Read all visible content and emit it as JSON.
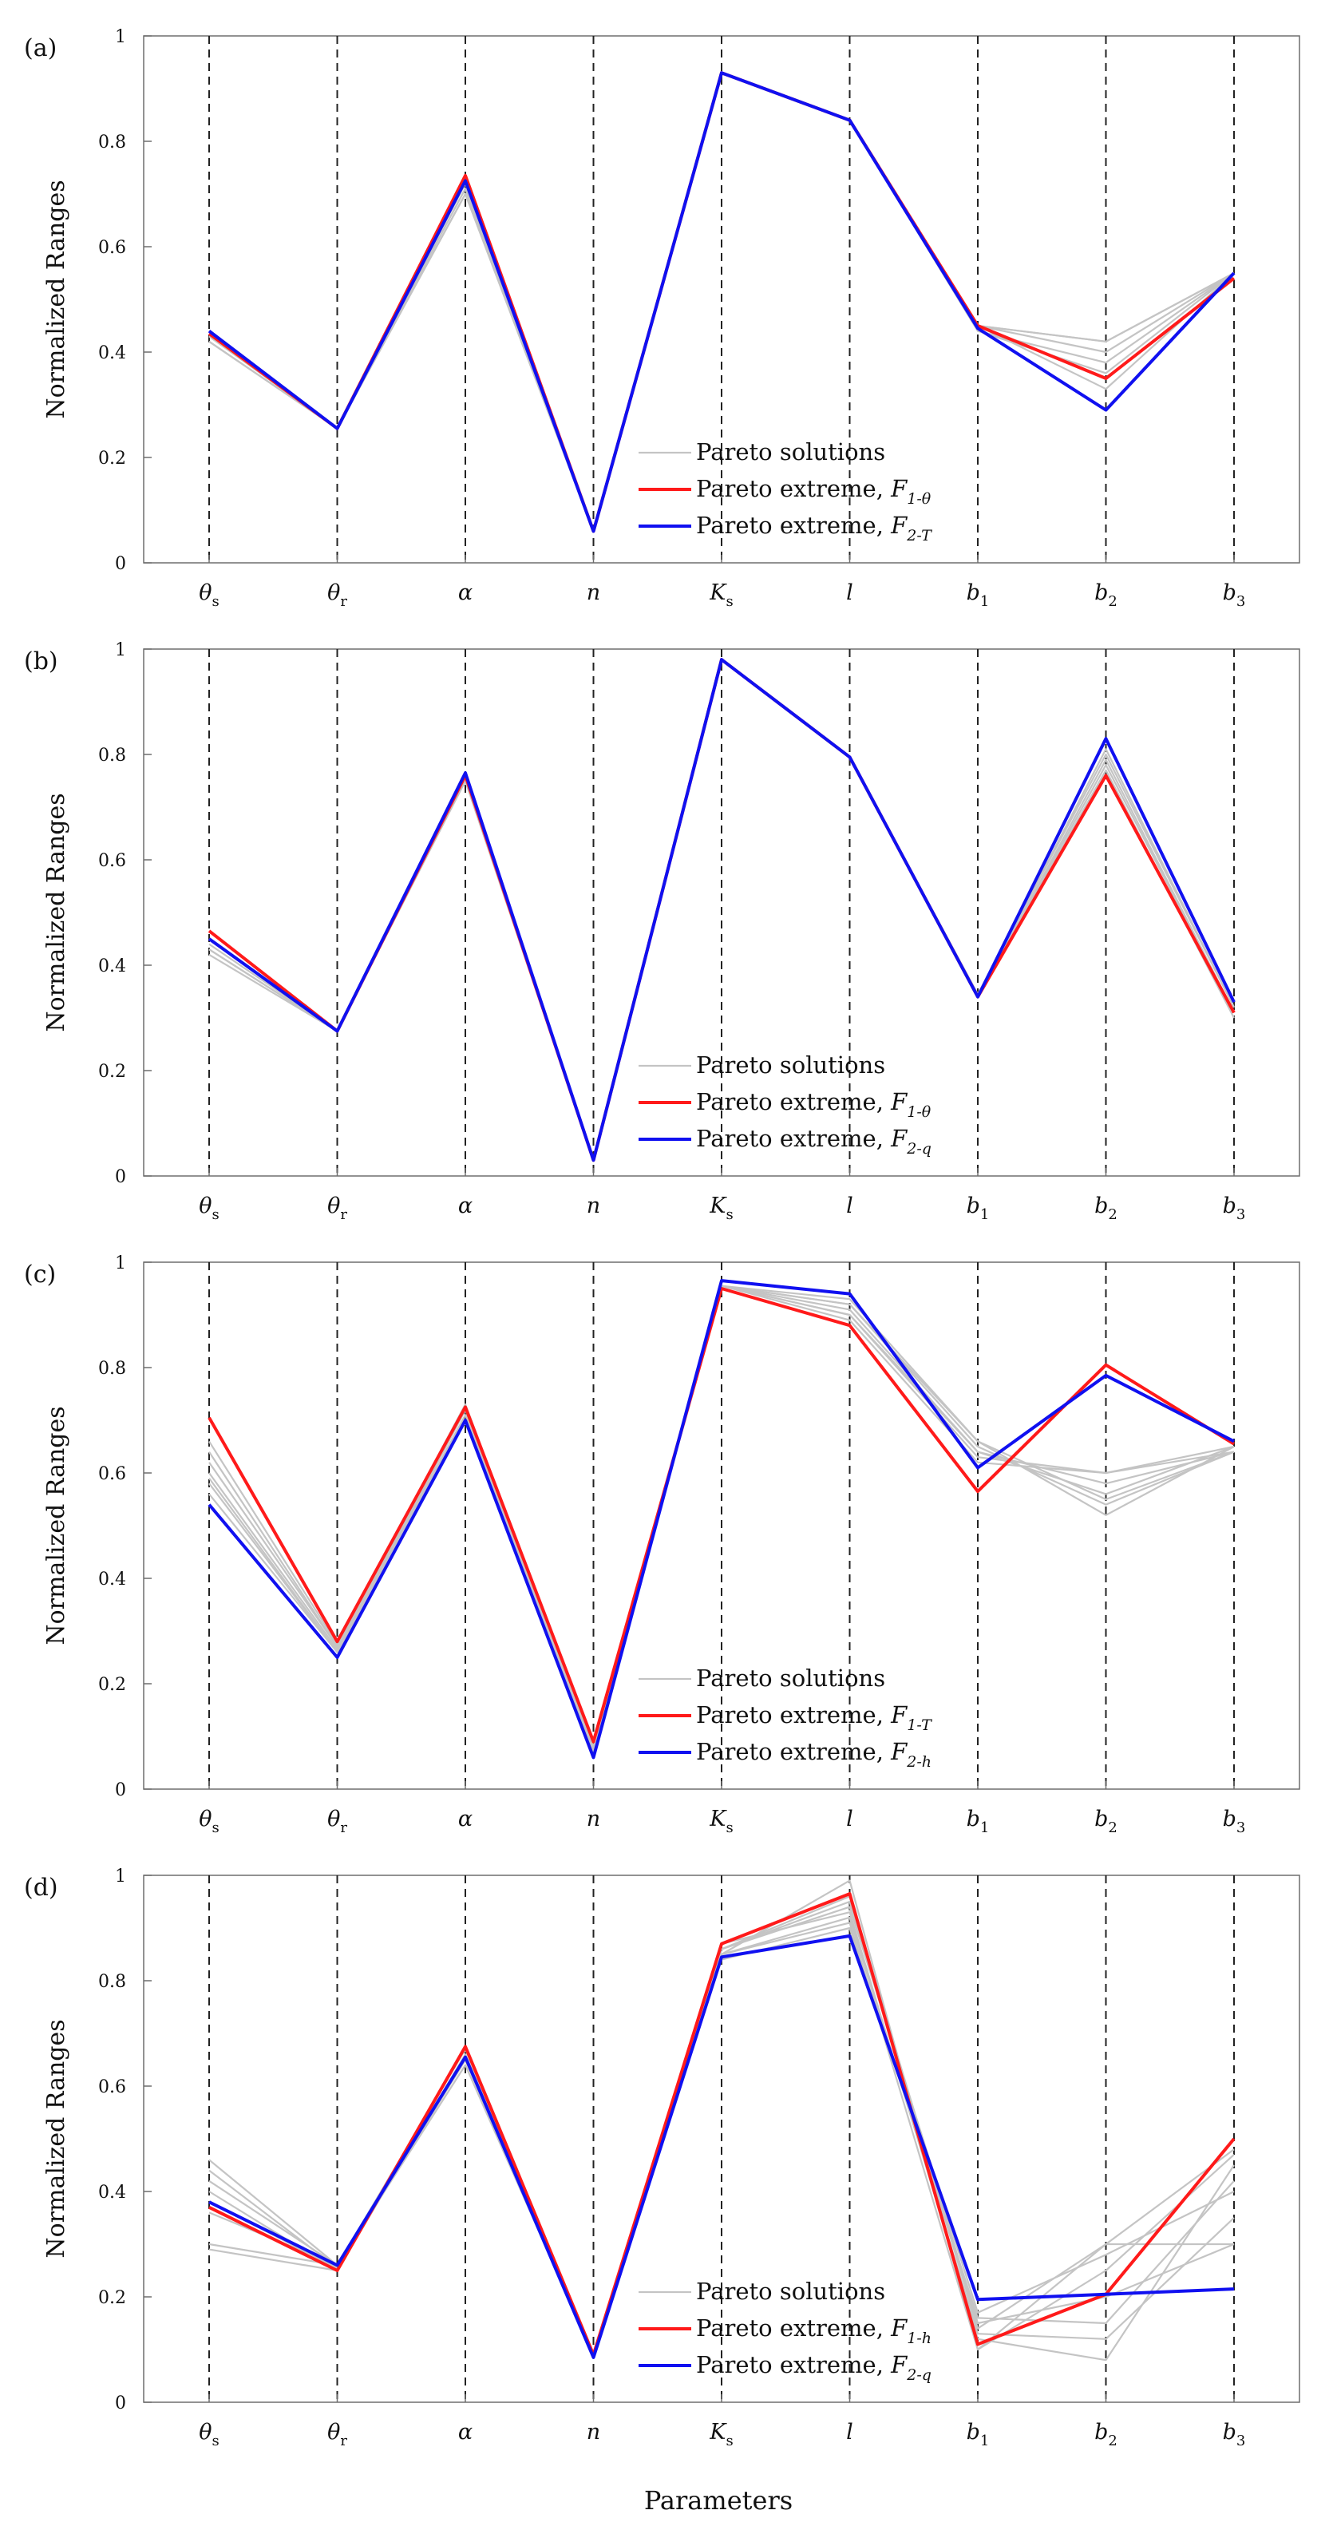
{
  "figure": {
    "xlabel": "Parameters",
    "ylabel": "Normalized Ranges"
  },
  "colors": {
    "pareto_solutions": "#c4c4c4",
    "extreme_1": "#ff1a1a",
    "extreme_2": "#1010f0",
    "vline": "#222222",
    "axes": "#6e6e6e"
  },
  "chart_data": [
    {
      "type": "line",
      "panel_label": "(a)",
      "categories": [
        "θs",
        "θr",
        "α",
        "n",
        "Ks",
        "l",
        "b1",
        "b2",
        "b3"
      ],
      "ylim": [
        0,
        1
      ],
      "yticks": [
        0,
        0.2,
        0.4,
        0.6,
        0.8,
        1
      ],
      "legend": {
        "placement": "lower-center",
        "entries": [
          {
            "label": "Pareto solutions"
          },
          {
            "label": "Pareto extreme, ",
            "f": "F",
            "sub": "1-θ"
          },
          {
            "label": "Pareto extreme, ",
            "f": "F",
            "sub": "2-T"
          }
        ]
      },
      "pareto_solutions": [
        [
          0.42,
          0.255,
          0.7,
          0.06,
          0.93,
          0.84,
          0.45,
          0.42,
          0.55
        ],
        [
          0.43,
          0.255,
          0.71,
          0.06,
          0.93,
          0.84,
          0.45,
          0.4,
          0.55
        ],
        [
          0.44,
          0.255,
          0.72,
          0.06,
          0.93,
          0.84,
          0.44,
          0.38,
          0.55
        ],
        [
          0.42,
          0.255,
          0.7,
          0.06,
          0.93,
          0.84,
          0.45,
          0.42,
          0.55
        ],
        [
          0.43,
          0.255,
          0.71,
          0.06,
          0.93,
          0.84,
          0.44,
          0.36,
          0.55
        ],
        [
          0.44,
          0.255,
          0.72,
          0.06,
          0.93,
          0.84,
          0.45,
          0.33,
          0.55
        ]
      ],
      "series": [
        {
          "name": "Pareto extreme, F1-θ",
          "values": [
            0.435,
            0.255,
            0.735,
            0.06,
            0.93,
            0.84,
            0.45,
            0.35,
            0.54
          ]
        },
        {
          "name": "Pareto extreme, F2-T",
          "values": [
            0.44,
            0.255,
            0.725,
            0.06,
            0.93,
            0.84,
            0.445,
            0.29,
            0.55
          ]
        }
      ]
    },
    {
      "type": "line",
      "panel_label": "(b)",
      "categories": [
        "θs",
        "θr",
        "α",
        "n",
        "Ks",
        "l",
        "b1",
        "b2",
        "b3"
      ],
      "ylim": [
        0,
        1
      ],
      "yticks": [
        0,
        0.2,
        0.4,
        0.6,
        0.8,
        1
      ],
      "legend": {
        "placement": "lower-center",
        "entries": [
          {
            "label": "Pareto solutions"
          },
          {
            "label": "Pareto extreme, ",
            "f": "F",
            "sub": "1-θ"
          },
          {
            "label": "Pareto extreme, ",
            "f": "F",
            "sub": "2-q"
          }
        ]
      },
      "pareto_solutions": [
        [
          0.42,
          0.275,
          0.75,
          0.03,
          0.98,
          0.795,
          0.34,
          0.77,
          0.3
        ],
        [
          0.43,
          0.275,
          0.755,
          0.03,
          0.98,
          0.795,
          0.34,
          0.79,
          0.31
        ],
        [
          0.44,
          0.275,
          0.76,
          0.03,
          0.98,
          0.795,
          0.345,
          0.8,
          0.32
        ],
        [
          0.45,
          0.275,
          0.76,
          0.03,
          0.98,
          0.795,
          0.34,
          0.81,
          0.32
        ],
        [
          0.43,
          0.275,
          0.75,
          0.03,
          0.98,
          0.795,
          0.34,
          0.78,
          0.31
        ]
      ],
      "series": [
        {
          "name": "Pareto extreme, F1-θ",
          "values": [
            0.465,
            0.275,
            0.76,
            0.03,
            0.98,
            0.795,
            0.34,
            0.76,
            0.31
          ]
        },
        {
          "name": "Pareto extreme, F2-q",
          "values": [
            0.45,
            0.275,
            0.765,
            0.03,
            0.98,
            0.795,
            0.34,
            0.83,
            0.33
          ]
        }
      ]
    },
    {
      "type": "line",
      "panel_label": "(c)",
      "categories": [
        "θs",
        "θr",
        "α",
        "n",
        "Ks",
        "l",
        "b1",
        "b2",
        "b3"
      ],
      "ylim": [
        0,
        1
      ],
      "yticks": [
        0,
        0.2,
        0.4,
        0.6,
        0.8,
        1
      ],
      "legend": {
        "placement": "lower-center",
        "entries": [
          {
            "label": "Pareto solutions"
          },
          {
            "label": "Pareto extreme, ",
            "f": "F",
            "sub": "1-T"
          },
          {
            "label": "Pareto extreme, ",
            "f": "F",
            "sub": "2-h"
          }
        ]
      },
      "pareto_solutions": [
        [
          0.56,
          0.26,
          0.71,
          0.07,
          0.955,
          0.93,
          0.66,
          0.52,
          0.65
        ],
        [
          0.58,
          0.26,
          0.72,
          0.07,
          0.955,
          0.92,
          0.65,
          0.54,
          0.64
        ],
        [
          0.6,
          0.265,
          0.72,
          0.07,
          0.955,
          0.91,
          0.64,
          0.56,
          0.65
        ],
        [
          0.62,
          0.27,
          0.72,
          0.075,
          0.955,
          0.9,
          0.64,
          0.58,
          0.64
        ],
        [
          0.64,
          0.27,
          0.73,
          0.08,
          0.955,
          0.9,
          0.63,
          0.6,
          0.65
        ],
        [
          0.66,
          0.275,
          0.73,
          0.08,
          0.955,
          0.89,
          0.62,
          0.6,
          0.64
        ],
        [
          0.59,
          0.26,
          0.72,
          0.07,
          0.955,
          0.92,
          0.66,
          0.55,
          0.64
        ]
      ],
      "series": [
        {
          "name": "Pareto extreme, F1-T",
          "values": [
            0.705,
            0.28,
            0.725,
            0.09,
            0.95,
            0.88,
            0.565,
            0.805,
            0.655
          ]
        },
        {
          "name": "Pareto extreme, F2-h",
          "values": [
            0.54,
            0.25,
            0.7,
            0.06,
            0.965,
            0.94,
            0.61,
            0.785,
            0.66
          ]
        }
      ]
    },
    {
      "type": "line",
      "panel_label": "(d)",
      "categories": [
        "θs",
        "θr",
        "α",
        "n",
        "Ks",
        "l",
        "b1",
        "b2",
        "b3"
      ],
      "ylim": [
        0,
        1
      ],
      "yticks": [
        0,
        0.2,
        0.4,
        0.6,
        0.8,
        1
      ],
      "legend": {
        "placement": "lower-center",
        "entries": [
          {
            "label": "Pareto solutions"
          },
          {
            "label": "Pareto extreme, ",
            "f": "F",
            "sub": "1-h"
          },
          {
            "label": "Pareto extreme, ",
            "f": "F",
            "sub": "2-q"
          }
        ]
      },
      "pareto_solutions": [
        [
          0.3,
          0.26,
          0.65,
          0.09,
          0.85,
          0.99,
          0.1,
          0.3,
          0.48
        ],
        [
          0.29,
          0.25,
          0.66,
          0.09,
          0.86,
          0.96,
          0.15,
          0.2,
          0.3
        ],
        [
          0.46,
          0.26,
          0.67,
          0.09,
          0.87,
          0.93,
          0.12,
          0.08,
          0.45
        ],
        [
          0.44,
          0.255,
          0.66,
          0.09,
          0.86,
          0.94,
          0.17,
          0.28,
          0.4
        ],
        [
          0.42,
          0.26,
          0.65,
          0.09,
          0.85,
          0.92,
          0.13,
          0.12,
          0.35
        ],
        [
          0.4,
          0.25,
          0.66,
          0.09,
          0.84,
          0.9,
          0.16,
          0.15,
          0.42
        ],
        [
          0.36,
          0.26,
          0.64,
          0.09,
          0.85,
          0.91,
          0.1,
          0.25,
          0.47
        ],
        [
          0.38,
          0.255,
          0.65,
          0.09,
          0.86,
          0.95,
          0.14,
          0.3,
          0.3
        ]
      ],
      "series": [
        {
          "name": "Pareto extreme, F1-h",
          "values": [
            0.37,
            0.25,
            0.675,
            0.09,
            0.87,
            0.965,
            0.11,
            0.205,
            0.5
          ]
        },
        {
          "name": "Pareto extreme, F2-q",
          "values": [
            0.38,
            0.26,
            0.655,
            0.085,
            0.845,
            0.885,
            0.195,
            0.205,
            0.215
          ]
        }
      ]
    }
  ]
}
